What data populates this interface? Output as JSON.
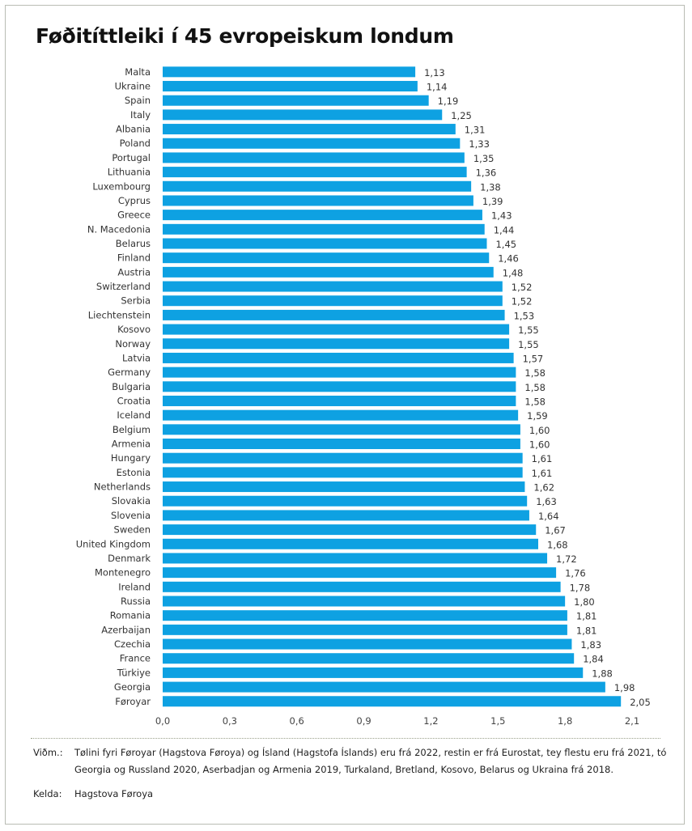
{
  "title": "Føðitíttleiki í 45 evropeiskum londum",
  "colors": {
    "bar": "#0ea1e2",
    "text": "#333333",
    "frame": "#b9bcb4"
  },
  "chart_data": {
    "type": "bar",
    "orientation": "horizontal",
    "title": "Føðitíttleiki í 45 evropeiskum londum",
    "xlabel": "",
    "ylabel": "",
    "xlim": [
      0,
      2.1
    ],
    "ticks": [
      0,
      0.3,
      0.6,
      0.9,
      1.2,
      1.5,
      1.8,
      2.1
    ],
    "tick_labels": [
      "0,0",
      "0,3",
      "0,6",
      "0,9",
      "1,2",
      "1,5",
      "1,8",
      "2,1"
    ],
    "grid": false,
    "legend": "none",
    "categories": [
      "Malta",
      "Ukraine",
      "Spain",
      "Italy",
      "Albania",
      "Poland",
      "Portugal",
      "Lithuania",
      "Luxembourg",
      "Cyprus",
      "Greece",
      "N. Macedonia",
      "Belarus",
      "Finland",
      "Austria",
      "Switzerland",
      "Serbia",
      "Liechtenstein",
      "Kosovo",
      "Norway",
      "Latvia",
      "Germany",
      "Bulgaria",
      "Croatia",
      "Iceland",
      "Belgium",
      "Armenia",
      "Hungary",
      "Estonia",
      "Netherlands",
      "Slovakia",
      "Slovenia",
      "Sweden",
      "United Kingdom",
      "Denmark",
      "Montenegro",
      "Ireland",
      "Russia",
      "Romania",
      "Azerbaijan",
      "Czechia",
      "France",
      "Türkiye",
      "Georgia",
      "Føroyar"
    ],
    "values": [
      1.13,
      1.14,
      1.19,
      1.25,
      1.31,
      1.33,
      1.35,
      1.36,
      1.38,
      1.39,
      1.43,
      1.44,
      1.45,
      1.46,
      1.48,
      1.52,
      1.52,
      1.53,
      1.55,
      1.55,
      1.57,
      1.58,
      1.58,
      1.58,
      1.59,
      1.6,
      1.6,
      1.61,
      1.61,
      1.62,
      1.63,
      1.64,
      1.67,
      1.68,
      1.72,
      1.76,
      1.78,
      1.8,
      1.81,
      1.81,
      1.83,
      1.84,
      1.88,
      1.98,
      2.05
    ],
    "value_labels": [
      "1,13",
      "1,14",
      "1,19",
      "1,25",
      "1,31",
      "1,33",
      "1,35",
      "1,36",
      "1,38",
      "1,39",
      "1,43",
      "1,44",
      "1,45",
      "1,46",
      "1,48",
      "1,52",
      "1,52",
      "1,53",
      "1,55",
      "1,55",
      "1,57",
      "1,58",
      "1,58",
      "1,58",
      "1,59",
      "1,60",
      "1,60",
      "1,61",
      "1,61",
      "1,62",
      "1,63",
      "1,64",
      "1,67",
      "1,68",
      "1,72",
      "1,76",
      "1,78",
      "1,80",
      "1,81",
      "1,81",
      "1,83",
      "1,84",
      "1,88",
      "1,98",
      "2,05"
    ]
  },
  "notes": {
    "remark_key": "Viðm.:",
    "remark_text": "Tølini fyri Føroyar (Hagstova Føroya) og Ísland (Hagstofa Íslands) eru frá 2022, restin er frá Eurostat, tey flestu eru frá 2021, tó Georgia og Russland 2020, Aserbadjan og Armenia 2019, Turkaland, Bretland, Kosovo, Belarus og Ukraina frá 2018.",
    "source_key": "Kelda:",
    "source_text": "Hagstova Føroya"
  }
}
